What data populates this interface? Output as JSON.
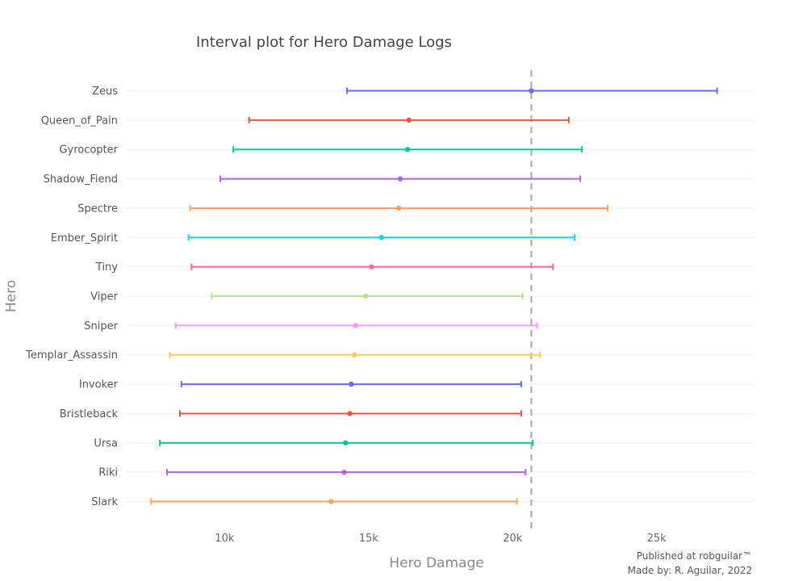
{
  "chart_data": {
    "type": "interval",
    "title": "Interval plot for Hero Damage Logs",
    "xlabel": "Hero Damage",
    "ylabel": "Hero",
    "xlim": [
      6600,
      28400
    ],
    "x_ticks": [
      {
        "value": 10000,
        "label": "10k"
      },
      {
        "value": 15000,
        "label": "15k"
      },
      {
        "value": 20000,
        "label": "20k"
      },
      {
        "value": 25000,
        "label": "25k"
      }
    ],
    "reference_line": {
      "x": 20650,
      "style": "dashed",
      "color": "#aaaaaa"
    },
    "grid": true,
    "series": [
      {
        "name": "Zeus",
        "low": 14250,
        "mean": 20650,
        "high": 27100,
        "color": "#636efa"
      },
      {
        "name": "Queen_of_Pain",
        "low": 10850,
        "mean": 16400,
        "high": 21950,
        "color": "#ef553b"
      },
      {
        "name": "Gyrocopter",
        "low": 10300,
        "mean": 16350,
        "high": 22400,
        "color": "#00cc96"
      },
      {
        "name": "Shadow_Fiend",
        "low": 9850,
        "mean": 16100,
        "high": 22350,
        "color": "#ab63fa"
      },
      {
        "name": "Spectre",
        "low": 8800,
        "mean": 16050,
        "high": 23300,
        "color": "#ffa15a"
      },
      {
        "name": "Ember_Spirit",
        "low": 8750,
        "mean": 15450,
        "high": 22150,
        "color": "#19d3f3"
      },
      {
        "name": "Tiny",
        "low": 8850,
        "mean": 15100,
        "high": 21400,
        "color": "#ff6692"
      },
      {
        "name": "Viper",
        "low": 9550,
        "mean": 14900,
        "high": 20350,
        "color": "#b6e880"
      },
      {
        "name": "Sniper",
        "low": 8300,
        "mean": 14550,
        "high": 20850,
        "color": "#ff97ff"
      },
      {
        "name": "Templar_Assassin",
        "low": 8100,
        "mean": 14500,
        "high": 20950,
        "color": "#fecb52"
      },
      {
        "name": "Invoker",
        "low": 8500,
        "mean": 14400,
        "high": 20300,
        "color": "#636efa"
      },
      {
        "name": "Bristleback",
        "low": 8450,
        "mean": 14350,
        "high": 20300,
        "color": "#ef553b"
      },
      {
        "name": "Ursa",
        "low": 7750,
        "mean": 14200,
        "high": 20700,
        "color": "#00cc96"
      },
      {
        "name": "Riki",
        "low": 8000,
        "mean": 14150,
        "high": 20450,
        "color": "#ab63fa"
      },
      {
        "name": "Slark",
        "low": 7450,
        "mean": 13700,
        "high": 20150,
        "color": "#ffa15a"
      }
    ]
  },
  "footer": {
    "line1": "Published at robguilar™",
    "line2": "Made by:  R. Aguilar, 2022"
  }
}
